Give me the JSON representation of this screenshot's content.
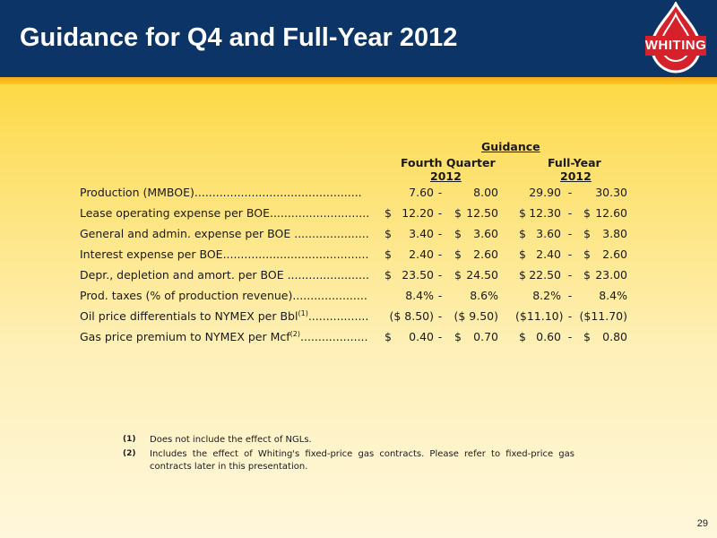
{
  "header": {
    "title": "Guidance for Q4 and Full-Year 2012",
    "logo_text": "WHITING",
    "bg_color": "#0d3466",
    "accent_color": "#d6202a"
  },
  "table": {
    "group_header": "Guidance",
    "col1_header_line1": "Fourth Quarter",
    "col1_header_line2": "2012",
    "col2_header_line1": "Full-Year",
    "col2_header_line2": "2012",
    "rows": [
      {
        "label": "Production (MMBOE)...............................................",
        "sup": "",
        "q_low": "7.60",
        "q_high": "8.00",
        "fy_low": "29.90",
        "fy_high": "30.30",
        "dollar": false
      },
      {
        "label": "Lease operating expense per BOE..............................",
        "sup": "",
        "q_low": "12.20",
        "q_high": "12.50",
        "fy_low": "12.30",
        "fy_high": "12.60",
        "dollar": true
      },
      {
        "label": "General and admin. expense per BOE .......................",
        "sup": "",
        "q_low": "3.40",
        "q_high": "3.60",
        "fy_low": "3.60",
        "fy_high": "3.80",
        "dollar": true
      },
      {
        "label": "Interest expense per BOE.........................................",
        "sup": "",
        "q_low": "2.40",
        "q_high": "2.60",
        "fy_low": "2.40",
        "fy_high": "2.60",
        "dollar": true
      },
      {
        "label": "Depr., depletion and amort. per BOE .......................",
        "sup": "",
        "q_low": "23.50",
        "q_high": "24.50",
        "fy_low": "22.50",
        "fy_high": "23.00",
        "dollar": true
      },
      {
        "label": "Prod. taxes (% of production revenue)......................",
        "sup": "",
        "q_low": "8.4%",
        "q_high": "8.6%",
        "fy_low": "8.2%",
        "fy_high": "8.4%",
        "dollar": false
      },
      {
        "label": "Oil price differentials to NYMEX per Bbl",
        "sup": "(1)",
        "dots": ".................",
        "q_low": "($ 8.50)",
        "q_high": "($ 9.50)",
        "fy_low": "($11.10)",
        "fy_high": "($11.70)",
        "dollar": false,
        "paren": true
      },
      {
        "label": "Gas price premium to NYMEX per Mcf",
        "sup": "(2)",
        "dots": "...................",
        "q_low": "0.40",
        "q_high": "0.70",
        "fy_low": "0.60",
        "fy_high": "0.80",
        "dollar": true
      }
    ],
    "dash": "-",
    "dollar_sign": "$"
  },
  "footnotes": [
    {
      "mark": "(1)",
      "text": "Does not include the effect of NGLs."
    },
    {
      "mark": "(2)",
      "text": "Includes the effect of Whiting's fixed-price gas contracts.  Please refer to fixed-price gas contracts later in this presentation."
    }
  ],
  "page_number": "29"
}
